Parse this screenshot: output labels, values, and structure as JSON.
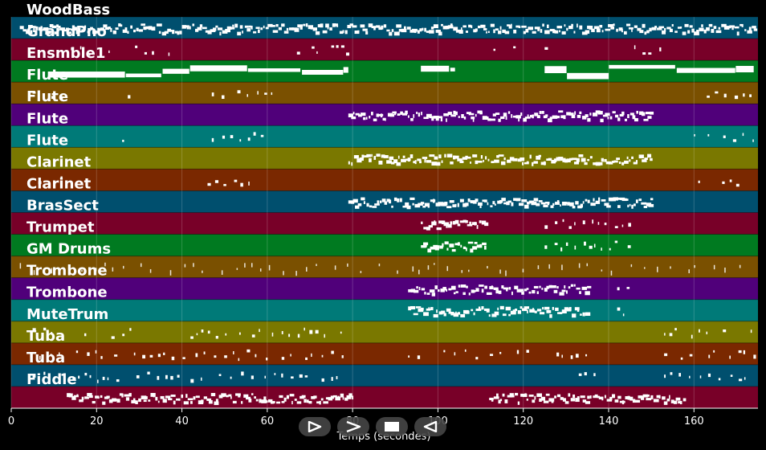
{
  "app": {
    "x_axis_label": "Temps (secondes)",
    "x_ticks": [
      "0",
      "20",
      "40",
      "60",
      "80",
      "100",
      "120",
      "140",
      "160"
    ],
    "x_range_seconds": [
      0,
      175
    ]
  },
  "tracks": [
    {
      "name": "WoodBass",
      "color": "#004f6e"
    },
    {
      "name": "GrandPno",
      "color": "#780028"
    },
    {
      "name": "Ensmble1",
      "color": "#007a20"
    },
    {
      "name": "Flute",
      "color": "#7a5000"
    },
    {
      "name": "Flute",
      "color": "#50007a"
    },
    {
      "name": "Flute",
      "color": "#007a78"
    },
    {
      "name": "Flute",
      "color": "#7a7800"
    },
    {
      "name": "Clarinet",
      "color": "#7a2800"
    },
    {
      "name": "Clarinet",
      "color": "#004f6e"
    },
    {
      "name": "BrasSect",
      "color": "#780028"
    },
    {
      "name": "Trumpet",
      "color": "#007a20"
    },
    {
      "name": "GM Drums",
      "color": "#7a5000"
    },
    {
      "name": "Trombone",
      "color": "#50007a"
    },
    {
      "name": "Trombone",
      "color": "#007a78"
    },
    {
      "name": "MuteTrum",
      "color": "#7a7800"
    },
    {
      "name": "Tuba",
      "color": "#7a2800"
    },
    {
      "name": "Tuba",
      "color": "#004f6e"
    },
    {
      "name": "Fiddle",
      "color": "#780028"
    }
  ],
  "note_activity": [
    [
      [
        2,
        174,
        "dense"
      ]
    ],
    [
      [
        14,
        24,
        "sparse"
      ],
      [
        29,
        37,
        "sparse"
      ],
      [
        65,
        72,
        "sparse"
      ],
      [
        75,
        80,
        "sparse"
      ],
      [
        113,
        118,
        "sparse"
      ],
      [
        125,
        127,
        "sparse"
      ],
      [
        146,
        152,
        "sparse"
      ]
    ],
    [
      [
        9,
        79,
        "block"
      ],
      [
        96,
        104,
        "block"
      ],
      [
        125,
        174,
        "block"
      ]
    ],
    [
      [
        5,
        12,
        "sparse"
      ],
      [
        26,
        29,
        "sparse"
      ],
      [
        47,
        63,
        "sparse"
      ],
      [
        163,
        173,
        "sparse"
      ]
    ],
    [
      [
        79,
        150,
        "dense"
      ]
    ],
    [
      [
        26,
        29,
        "sparse"
      ],
      [
        47,
        63,
        "sparse"
      ],
      [
        160,
        174,
        "sparse"
      ]
    ],
    [
      [
        79,
        150,
        "dense"
      ]
    ],
    [
      [
        4,
        12,
        "sparse"
      ],
      [
        46,
        58,
        "sparse"
      ],
      [
        161,
        173,
        "sparse"
      ]
    ],
    [
      [
        79,
        150,
        "dense"
      ]
    ],
    [
      [
        96,
        111,
        "dense"
      ],
      [
        125,
        145,
        "sparse"
      ]
    ],
    [
      [
        96,
        111,
        "dense"
      ],
      [
        125,
        145,
        "sparse"
      ]
    ],
    [
      [
        2,
        174,
        "drums"
      ]
    ],
    [
      [
        93,
        135,
        "dense"
      ],
      [
        142,
        145,
        "sparse"
      ]
    ],
    [
      [
        93,
        135,
        "dense"
      ],
      [
        142,
        145,
        "sparse"
      ]
    ],
    [
      [
        5,
        30,
        "sparse"
      ],
      [
        42,
        78,
        "sparse"
      ],
      [
        153,
        174,
        "sparse"
      ]
    ],
    [
      [
        5,
        78,
        "sparse"
      ],
      [
        93,
        135,
        "sparse"
      ],
      [
        153,
        174,
        "sparse"
      ]
    ],
    [
      [
        5,
        78,
        "sparse"
      ],
      [
        133,
        137,
        "sparse"
      ],
      [
        153,
        174,
        "sparse"
      ]
    ],
    [
      [
        13,
        80,
        "dense"
      ],
      [
        112,
        158,
        "dense"
      ]
    ]
  ],
  "controls": [
    {
      "name": "play-button",
      "icon": "play-icon"
    },
    {
      "name": "forward-button",
      "icon": "forward-icon"
    },
    {
      "name": "stop-button",
      "icon": "stop-icon"
    },
    {
      "name": "back-button",
      "icon": "back-icon"
    }
  ]
}
